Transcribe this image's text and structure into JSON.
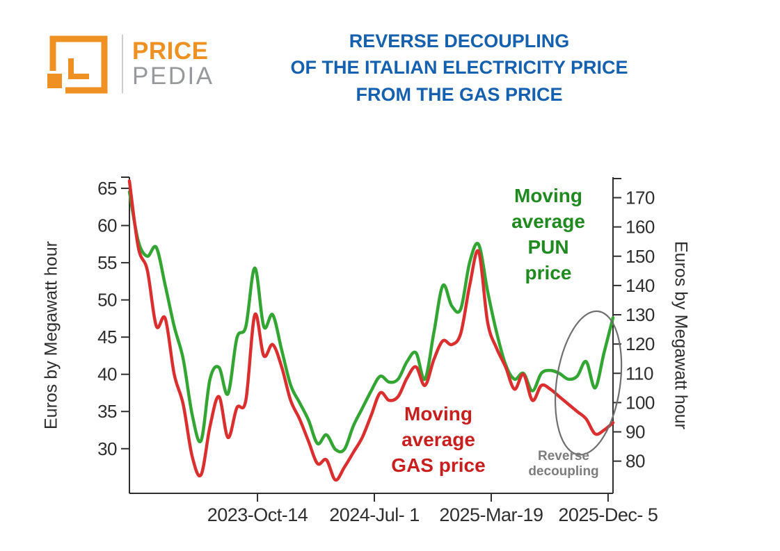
{
  "title": {
    "lines": [
      "REVERSE DECOUPLING",
      "OF THE ITALIAN ELECTRICITY PRICE",
      "FROM THE GAS PRICE"
    ],
    "color": "#1560AF"
  },
  "logo": {
    "brand_top": "PRICE",
    "brand_bottom": "PEDIA",
    "orange": "#EE9022",
    "gray": "#97999C"
  },
  "chart_data": {
    "type": "line",
    "x_unit": "days since 2023-01-01",
    "x_domain": [
      0,
      1080
    ],
    "x_ticks": [
      {
        "pos": 286,
        "label": "2023-Oct-14"
      },
      {
        "pos": 547,
        "label": "2024-Jul- 1"
      },
      {
        "pos": 808,
        "label": "2025-Mar-19"
      },
      {
        "pos": 1069,
        "label": "2025-Dec- 5"
      }
    ],
    "left_axis": {
      "label": "Euros by Megawatt hour",
      "ticks": [
        65,
        60,
        55,
        50,
        45,
        40,
        35,
        30
      ],
      "range": [
        24,
        66.5
      ]
    },
    "right_axis": {
      "label": "Euros by Megawatt hour",
      "ticks": [
        170,
        160,
        150,
        140,
        130,
        120,
        110,
        100,
        90,
        80
      ],
      "range": [
        69,
        177
      ]
    },
    "grid": false,
    "x": [
      0,
      20,
      40,
      60,
      80,
      100,
      120,
      140,
      160,
      180,
      200,
      220,
      240,
      260,
      280,
      300,
      320,
      340,
      360,
      380,
      400,
      420,
      440,
      460,
      480,
      500,
      520,
      540,
      560,
      580,
      600,
      620,
      640,
      660,
      680,
      700,
      720,
      740,
      760,
      780,
      800,
      820,
      840,
      860,
      880,
      900,
      920,
      940,
      960,
      980,
      1000,
      1020,
      1040,
      1060,
      1080
    ],
    "series": [
      {
        "name": "Moving average PUN price",
        "axis": "right",
        "color": "#33A532",
        "values": [
          172,
          155,
          150,
          153,
          140,
          126,
          115,
          96,
          87,
          108,
          112,
          103,
          122,
          126,
          146,
          126,
          130,
          118,
          106,
          100,
          94,
          86,
          89,
          84,
          84,
          92,
          98,
          104,
          109,
          107,
          108,
          114,
          117,
          108,
          124,
          140,
          133,
          132,
          148,
          154,
          138,
          124,
          113,
          108,
          110,
          104,
          110,
          111,
          110,
          108,
          109,
          114,
          105,
          117,
          129
        ]
      },
      {
        "name": "Moving average GAS price",
        "axis": "left",
        "color": "#DB2F2F",
        "values": [
          66,
          57,
          54,
          46.5,
          47.5,
          40,
          36,
          29,
          26.5,
          33,
          37,
          31.5,
          35.5,
          36.5,
          48,
          42.5,
          44,
          41,
          36.5,
          34,
          31,
          28,
          28.5,
          25.8,
          27.5,
          29.5,
          31.5,
          34.5,
          37.5,
          36.5,
          37,
          39.5,
          41,
          38.5,
          42,
          44.5,
          44,
          45.5,
          52,
          56.5,
          47,
          43.5,
          41,
          38,
          40,
          36.5,
          38.5,
          38,
          37,
          36,
          35,
          34,
          32,
          32.5,
          33.5
        ]
      }
    ],
    "annotations": {
      "pun_label": {
        "text": "Moving\naverage\nPUN\nprice",
        "color": "#1F8A1F"
      },
      "gas_label": {
        "text": "Moving\naverage\nGAS price",
        "color": "#C81E1E"
      },
      "decoupling_label": {
        "text": "Reverse\ndecoupling",
        "color": "#7D7D7D"
      },
      "ellipse": {
        "x_day": 1025,
        "y_right": 106.7,
        "rx_days": 71,
        "ry_right": 24.7,
        "rotate_deg": 8,
        "color": "#6F6F6F"
      }
    }
  }
}
